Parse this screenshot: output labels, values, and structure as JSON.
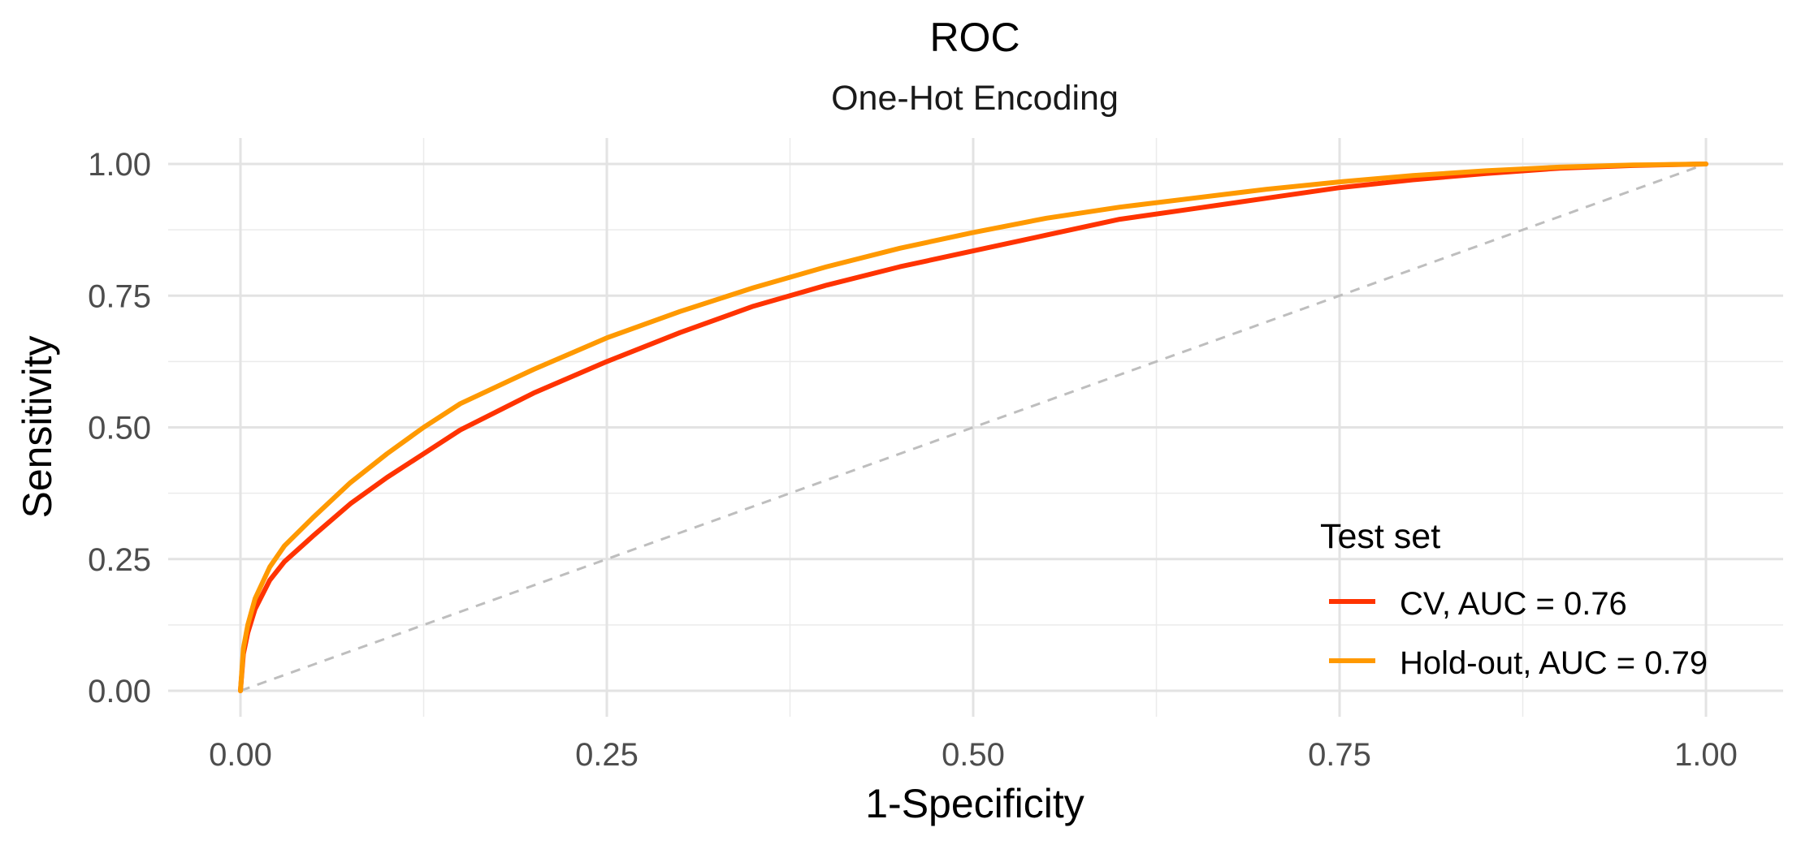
{
  "chart_data": {
    "type": "line",
    "title": "ROC",
    "subtitle": "One-Hot Encoding",
    "xlabel": "1-Specificity",
    "ylabel": "Sensitivity",
    "xlim": [
      0,
      1
    ],
    "ylim": [
      0,
      1
    ],
    "x_ticks": [
      "0.00",
      "0.25",
      "0.50",
      "0.75",
      "1.00"
    ],
    "y_ticks": [
      "0.00",
      "0.25",
      "0.50",
      "0.75",
      "1.00"
    ],
    "grid": true,
    "legend": {
      "title": "Test set",
      "position": "bottom-right"
    },
    "reference_line": {
      "x": [
        0,
        1
      ],
      "y": [
        0,
        1
      ],
      "color": "#bebebe",
      "style": "dashed"
    },
    "series": [
      {
        "name": "CV, AUC = 0.76",
        "color": "#ff3300",
        "x": [
          0,
          0.002,
          0.005,
          0.01,
          0.02,
          0.03,
          0.05,
          0.075,
          0.1,
          0.125,
          0.15,
          0.2,
          0.25,
          0.3,
          0.35,
          0.4,
          0.45,
          0.5,
          0.55,
          0.6,
          0.65,
          0.7,
          0.75,
          0.8,
          0.85,
          0.9,
          0.95,
          1.0
        ],
        "y": [
          0,
          0.07,
          0.11,
          0.155,
          0.21,
          0.245,
          0.295,
          0.355,
          0.405,
          0.45,
          0.495,
          0.565,
          0.625,
          0.68,
          0.73,
          0.77,
          0.805,
          0.835,
          0.865,
          0.895,
          0.915,
          0.935,
          0.955,
          0.97,
          0.982,
          0.992,
          0.997,
          1.0
        ]
      },
      {
        "name": "Hold-out, AUC = 0.79",
        "color": "#ff9900",
        "x": [
          0,
          0.002,
          0.005,
          0.01,
          0.02,
          0.03,
          0.05,
          0.075,
          0.1,
          0.125,
          0.15,
          0.2,
          0.25,
          0.3,
          0.35,
          0.4,
          0.45,
          0.5,
          0.55,
          0.6,
          0.65,
          0.7,
          0.75,
          0.8,
          0.85,
          0.9,
          0.95,
          1.0
        ],
        "y": [
          0,
          0.08,
          0.125,
          0.175,
          0.235,
          0.275,
          0.33,
          0.395,
          0.45,
          0.5,
          0.545,
          0.61,
          0.67,
          0.72,
          0.765,
          0.805,
          0.84,
          0.87,
          0.897,
          0.918,
          0.935,
          0.952,
          0.966,
          0.978,
          0.987,
          0.994,
          0.998,
          1.0
        ]
      }
    ]
  }
}
